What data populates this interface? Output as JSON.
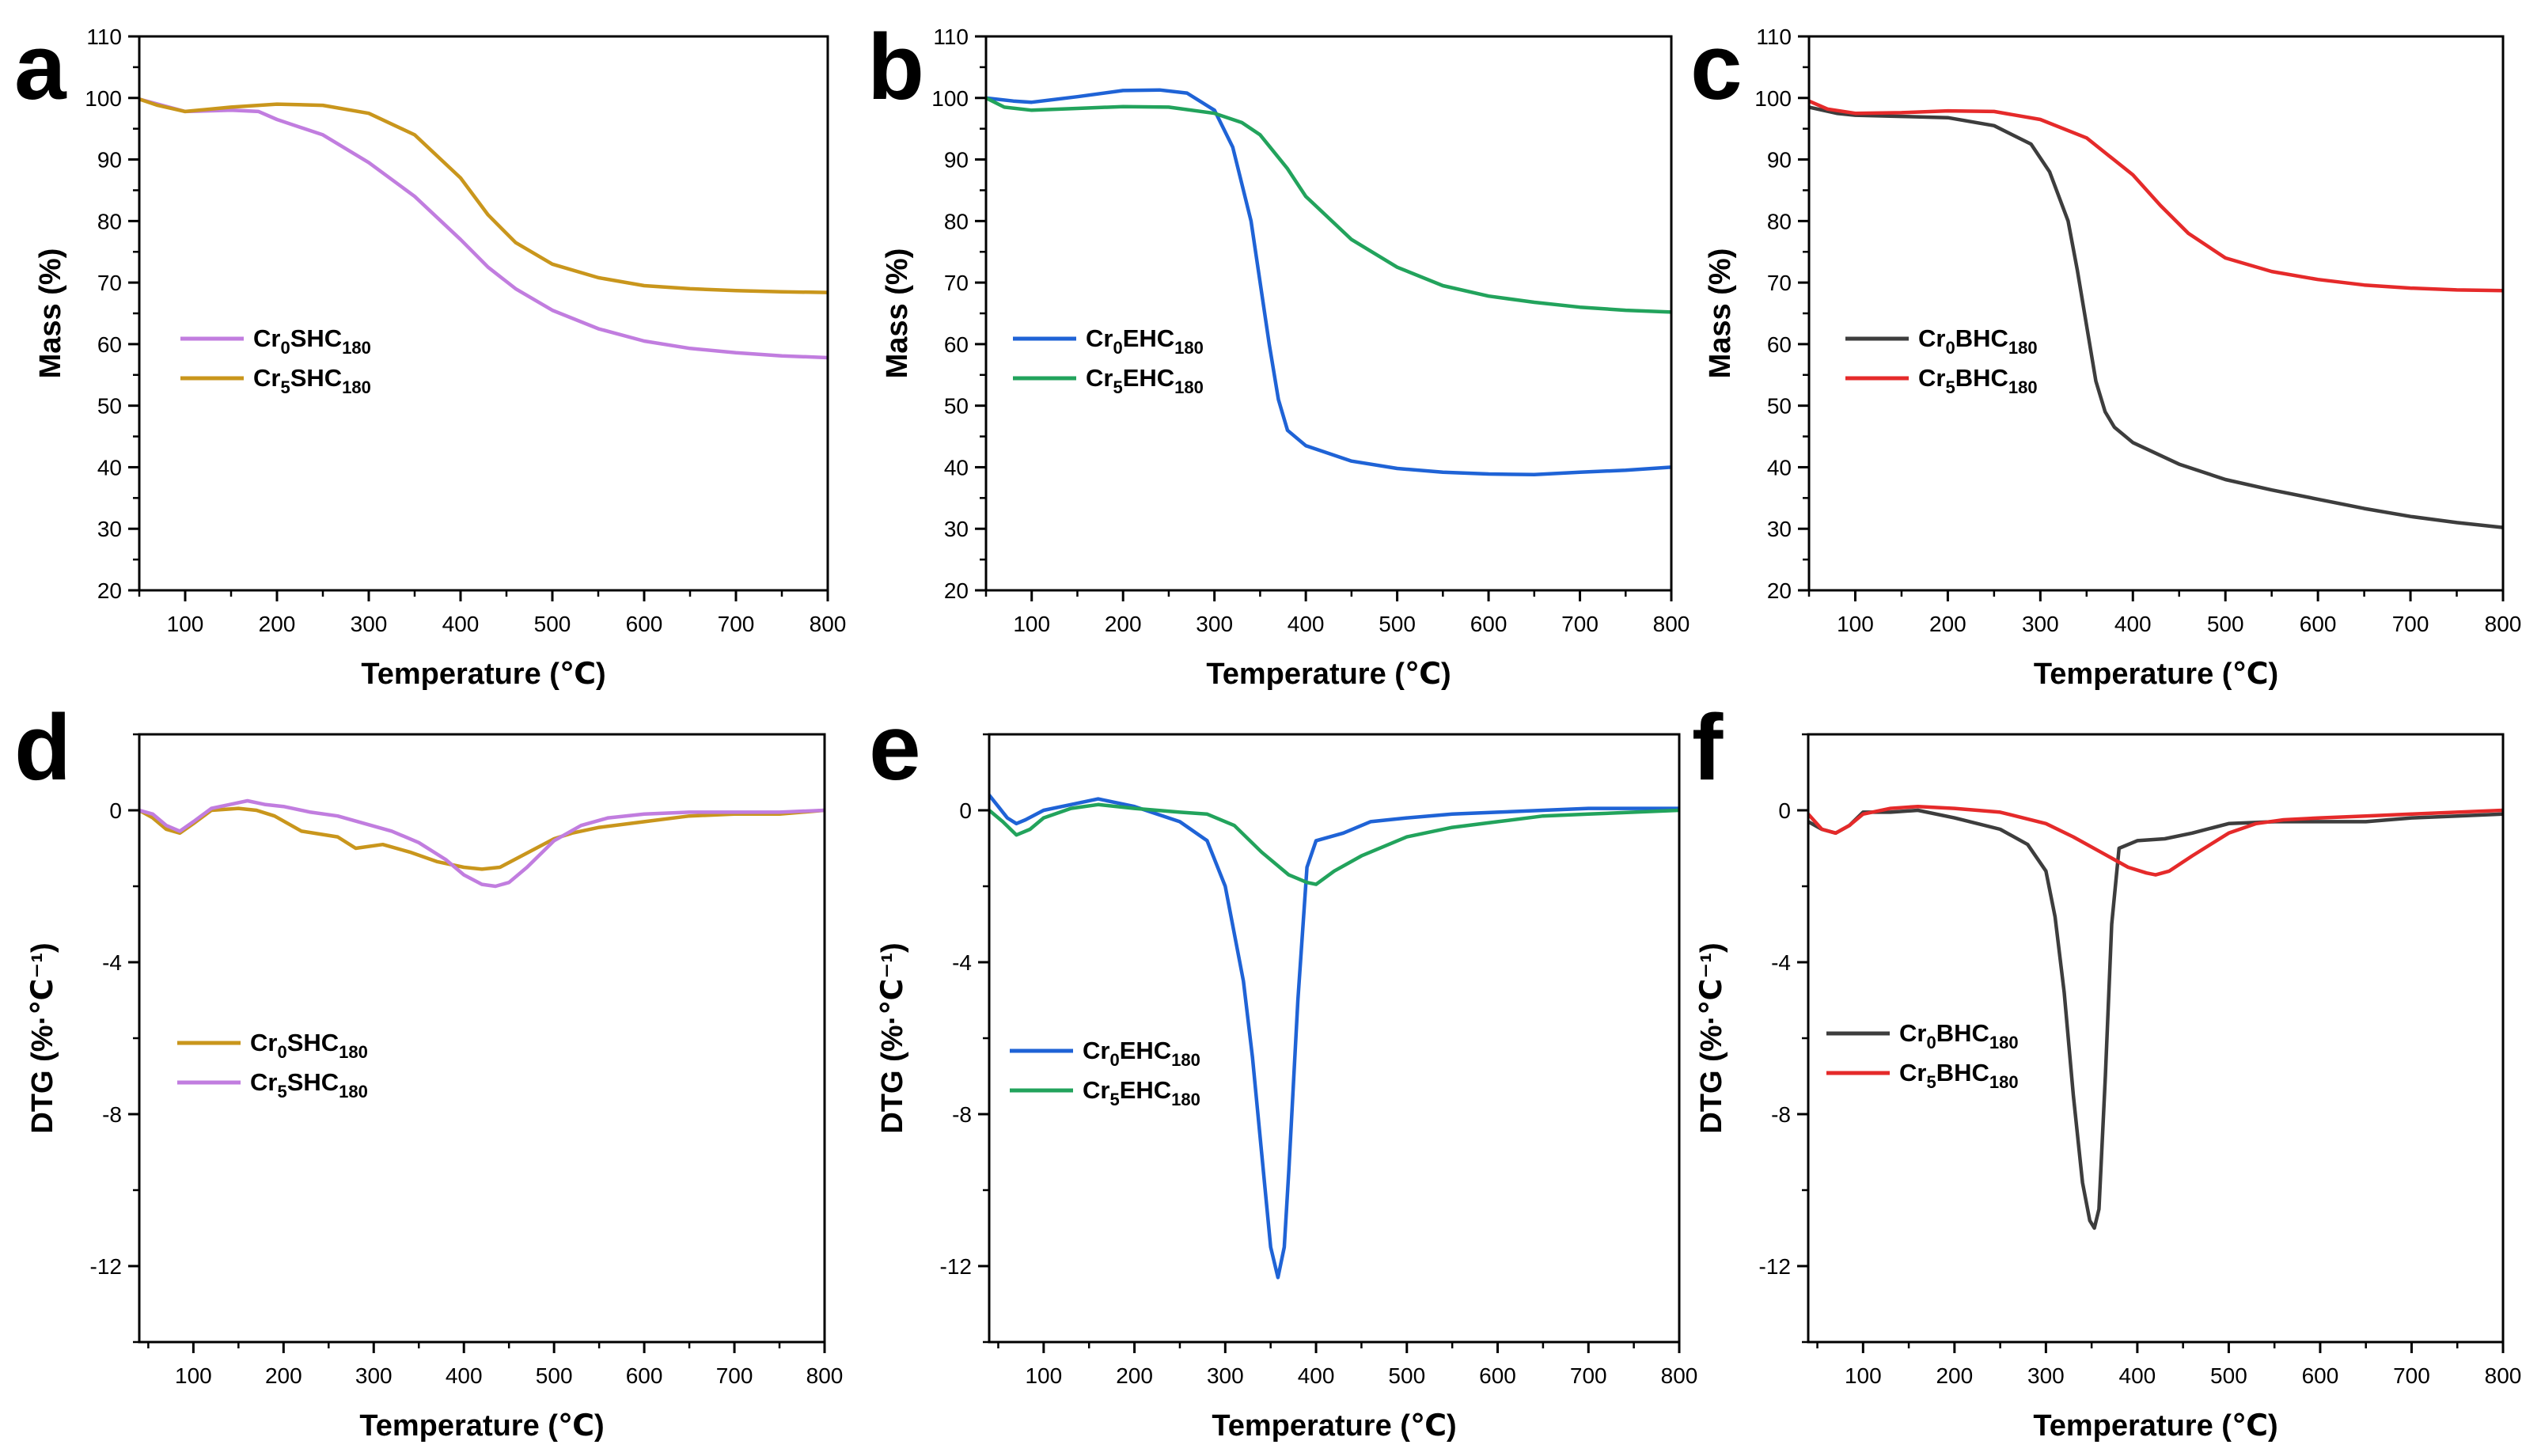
{
  "figure": {
    "description_free": true,
    "panel_letters": [
      "a",
      "b",
      "c",
      "d",
      "e",
      "f"
    ]
  },
  "chart_data": [
    {
      "type": "line",
      "panel": "a",
      "title": "",
      "xlabel": "Temperature (℃)",
      "ylabel": "Mass (%)",
      "xlim": [
        50,
        800
      ],
      "ylim": [
        20,
        110
      ],
      "xticks": [
        100,
        200,
        300,
        400,
        500,
        600,
        700,
        800
      ],
      "yticks": [
        20,
        30,
        40,
        50,
        60,
        70,
        80,
        90,
        100,
        110
      ],
      "legend": "center-left",
      "series": [
        {
          "name": "Cr0SHC180",
          "label_main": "Cr",
          "label_sub1": "0",
          "label_mid": "SHC",
          "label_sub2": "180",
          "color": "#c17ddf",
          "x": [
            50,
            70,
            100,
            150,
            180,
            200,
            250,
            300,
            350,
            400,
            430,
            460,
            500,
            550,
            600,
            650,
            700,
            750,
            800
          ],
          "y": [
            99.8,
            99,
            97.8,
            98,
            97.8,
            96.5,
            94,
            89.5,
            84,
            77,
            72.5,
            69,
            65.5,
            62.5,
            60.5,
            59.3,
            58.6,
            58.1,
            57.8
          ]
        },
        {
          "name": "Cr5SHC180",
          "label_main": "Cr",
          "label_sub1": "5",
          "label_mid": "SHC",
          "label_sub2": "180",
          "color": "#c9961c",
          "x": [
            50,
            70,
            100,
            150,
            200,
            250,
            300,
            350,
            400,
            430,
            460,
            500,
            550,
            600,
            650,
            700,
            750,
            800
          ],
          "y": [
            99.8,
            98.8,
            97.8,
            98.5,
            99,
            98.8,
            97.5,
            94,
            87,
            81,
            76.5,
            73,
            70.8,
            69.5,
            69,
            68.7,
            68.5,
            68.4
          ]
        }
      ]
    },
    {
      "type": "line",
      "panel": "b",
      "title": "",
      "xlabel": "Temperature (℃)",
      "ylabel": "Mass (%)",
      "xlim": [
        50,
        800
      ],
      "ylim": [
        20,
        110
      ],
      "xticks": [
        100,
        200,
        300,
        400,
        500,
        600,
        700,
        800
      ],
      "yticks": [
        20,
        30,
        40,
        50,
        60,
        70,
        80,
        90,
        100,
        110
      ],
      "legend": "center-left",
      "series": [
        {
          "name": "Cr0EHC180",
          "label_main": "Cr",
          "label_sub1": "0",
          "label_mid": "EHC",
          "label_sub2": "180",
          "color": "#1f63d6",
          "x": [
            50,
            80,
            100,
            150,
            200,
            240,
            270,
            300,
            320,
            340,
            350,
            360,
            370,
            380,
            400,
            450,
            500,
            550,
            600,
            650,
            700,
            750,
            800
          ],
          "y": [
            100,
            99.5,
            99.3,
            100.2,
            101.2,
            101.3,
            100.8,
            98,
            92,
            80,
            70,
            60,
            51,
            46,
            43.5,
            41,
            39.8,
            39.2,
            38.9,
            38.8,
            39.2,
            39.5,
            40
          ]
        },
        {
          "name": "Cr5EHC180",
          "label_main": "Cr",
          "label_sub1": "5",
          "label_mid": "EHC",
          "label_sub2": "180",
          "color": "#22a35c",
          "x": [
            50,
            70,
            100,
            150,
            200,
            250,
            300,
            330,
            350,
            380,
            400,
            450,
            500,
            550,
            600,
            650,
            700,
            750,
            800
          ],
          "y": [
            100,
            98.5,
            98,
            98.3,
            98.6,
            98.5,
            97.5,
            96,
            94,
            88.5,
            84,
            77,
            72.5,
            69.5,
            67.8,
            66.8,
            66,
            65.5,
            65.2
          ]
        }
      ]
    },
    {
      "type": "line",
      "panel": "c",
      "title": "",
      "xlabel": "Temperature (℃)",
      "ylabel": "Mass (%)",
      "xlim": [
        50,
        800
      ],
      "ylim": [
        20,
        110
      ],
      "xticks": [
        100,
        200,
        300,
        400,
        500,
        600,
        700,
        800
      ],
      "yticks": [
        20,
        30,
        40,
        50,
        60,
        70,
        80,
        90,
        100,
        110
      ],
      "legend": "center-left",
      "series": [
        {
          "name": "Cr0BHC180",
          "label_main": "Cr",
          "label_sub1": "0",
          "label_mid": "BHC",
          "label_sub2": "180",
          "color": "#3d3d3d",
          "x": [
            50,
            80,
            100,
            150,
            200,
            250,
            290,
            310,
            330,
            340,
            350,
            360,
            370,
            380,
            400,
            450,
            500,
            550,
            600,
            650,
            700,
            750,
            800
          ],
          "y": [
            98.5,
            97.5,
            97.2,
            97,
            96.8,
            95.5,
            92.5,
            88,
            80,
            72,
            63,
            54,
            49,
            46.5,
            44,
            40.5,
            38,
            36.3,
            34.8,
            33.3,
            32,
            31,
            30.2
          ]
        },
        {
          "name": "Cr5BHC180",
          "label_main": "Cr",
          "label_sub1": "5",
          "label_mid": "BHC",
          "label_sub2": "180",
          "color": "#e52a2a",
          "x": [
            50,
            70,
            100,
            150,
            200,
            250,
            300,
            350,
            400,
            430,
            460,
            500,
            550,
            600,
            650,
            700,
            750,
            800
          ],
          "y": [
            99.5,
            98.2,
            97.5,
            97.6,
            97.9,
            97.8,
            96.5,
            93.5,
            87.5,
            82.5,
            78,
            74,
            71.8,
            70.5,
            69.6,
            69.1,
            68.8,
            68.7
          ]
        }
      ]
    },
    {
      "type": "line",
      "panel": "d",
      "title": "",
      "xlabel": "Temperature (℃)",
      "ylabel": "DTG (%·℃⁻¹)",
      "xlim": [
        40,
        800
      ],
      "ylim": [
        -14,
        2
      ],
      "xticks": [
        100,
        200,
        300,
        400,
        500,
        600,
        700,
        800
      ],
      "yticks": [
        0,
        -4,
        -8,
        -12
      ],
      "legend": "center-left",
      "series": [
        {
          "name": "Cr0SHC180",
          "label_main": "Cr",
          "label_sub1": "0",
          "label_mid": "SHC",
          "label_sub2": "180",
          "color": "#c9961c",
          "x": [
            40,
            55,
            70,
            85,
            100,
            120,
            150,
            170,
            190,
            220,
            260,
            280,
            310,
            340,
            370,
            400,
            420,
            440,
            460,
            480,
            500,
            520,
            550,
            600,
            650,
            700,
            750,
            800
          ],
          "y": [
            0,
            -0.2,
            -0.5,
            -0.6,
            -0.35,
            0,
            0.05,
            0,
            -0.15,
            -0.55,
            -0.7,
            -1,
            -0.9,
            -1.1,
            -1.35,
            -1.5,
            -1.55,
            -1.5,
            -1.25,
            -1,
            -0.75,
            -0.6,
            -0.45,
            -0.3,
            -0.15,
            -0.1,
            -0.1,
            0
          ]
        },
        {
          "name": "Cr5SHC180",
          "label_main": "Cr",
          "label_sub1": "5",
          "label_mid": "SHC",
          "label_sub2": "180",
          "color": "#c17ddf",
          "x": [
            40,
            55,
            70,
            85,
            100,
            120,
            140,
            160,
            180,
            200,
            230,
            260,
            290,
            320,
            350,
            380,
            400,
            420,
            435,
            450,
            470,
            500,
            530,
            560,
            600,
            650,
            700,
            750,
            800
          ],
          "y": [
            0,
            -0.1,
            -0.4,
            -0.55,
            -0.3,
            0.05,
            0.15,
            0.25,
            0.15,
            0.1,
            -0.05,
            -0.15,
            -0.35,
            -0.55,
            -0.85,
            -1.3,
            -1.7,
            -1.95,
            -2,
            -1.9,
            -1.5,
            -0.8,
            -0.4,
            -0.2,
            -0.1,
            -0.05,
            -0.05,
            -0.05,
            0
          ]
        }
      ]
    },
    {
      "type": "line",
      "panel": "e",
      "title": "",
      "xlabel": "Temperature (℃)",
      "ylabel": "DTG (%·℃⁻¹)",
      "xlim": [
        40,
        800
      ],
      "ylim": [
        -14,
        2
      ],
      "xticks": [
        100,
        200,
        300,
        400,
        500,
        600,
        700,
        800
      ],
      "yticks": [
        0,
        -4,
        -8,
        -12
      ],
      "legend": "center-left",
      "series": [
        {
          "name": "Cr0EHC180",
          "label_main": "Cr",
          "label_sub1": "0",
          "label_mid": "EHC",
          "label_sub2": "180",
          "color": "#1f63d6",
          "x": [
            40,
            50,
            60,
            70,
            80,
            100,
            130,
            160,
            200,
            250,
            280,
            300,
            320,
            330,
            340,
            350,
            358,
            365,
            370,
            380,
            390,
            400,
            430,
            460,
            500,
            550,
            600,
            650,
            700,
            750,
            800
          ],
          "y": [
            0.4,
            0.1,
            -0.2,
            -0.35,
            -0.25,
            0,
            0.15,
            0.3,
            0.1,
            -0.3,
            -0.8,
            -2,
            -4.5,
            -6.5,
            -9,
            -11.5,
            -12.3,
            -11.5,
            -9.5,
            -5,
            -1.5,
            -0.8,
            -0.6,
            -0.3,
            -0.2,
            -0.1,
            -0.05,
            0,
            0.05,
            0.05,
            0.05
          ]
        },
        {
          "name": "Cr5EHC180",
          "label_main": "Cr",
          "label_sub1": "5",
          "label_mid": "EHC",
          "label_sub2": "180",
          "color": "#22a35c",
          "x": [
            40,
            55,
            70,
            85,
            100,
            130,
            160,
            200,
            250,
            280,
            310,
            340,
            370,
            390,
            400,
            420,
            450,
            500,
            550,
            600,
            650,
            700,
            750,
            800
          ],
          "y": [
            0,
            -0.3,
            -0.65,
            -0.5,
            -0.2,
            0.05,
            0.15,
            0.05,
            -0.05,
            -0.1,
            -0.4,
            -1.1,
            -1.7,
            -1.9,
            -1.95,
            -1.6,
            -1.2,
            -0.7,
            -0.45,
            -0.3,
            -0.15,
            -0.1,
            -0.05,
            0
          ]
        }
      ]
    },
    {
      "type": "line",
      "panel": "f",
      "title": "",
      "xlabel": "Temperature (℃)",
      "ylabel": "DTG (%·℃⁻¹)",
      "xlim": [
        40,
        800
      ],
      "ylim": [
        -14,
        2
      ],
      "xticks": [
        100,
        200,
        300,
        400,
        500,
        600,
        700,
        800
      ],
      "yticks": [
        0,
        -4,
        -8,
        -12
      ],
      "legend": "center-left",
      "series": [
        {
          "name": "Cr0BHC180",
          "label_main": "Cr",
          "label_sub1": "0",
          "label_mid": "BHC",
          "label_sub2": "180",
          "color": "#3d3d3d",
          "x": [
            40,
            55,
            70,
            85,
            100,
            130,
            160,
            200,
            250,
            280,
            300,
            310,
            320,
            330,
            340,
            348,
            353,
            358,
            365,
            372,
            380,
            400,
            430,
            460,
            500,
            550,
            600,
            650,
            700,
            750,
            800
          ],
          "y": [
            -0.3,
            -0.5,
            -0.6,
            -0.4,
            -0.05,
            -0.05,
            0,
            -0.2,
            -0.5,
            -0.9,
            -1.6,
            -2.8,
            -4.8,
            -7.5,
            -9.8,
            -10.8,
            -11,
            -10.5,
            -7,
            -3,
            -1,
            -0.8,
            -0.75,
            -0.6,
            -0.35,
            -0.3,
            -0.3,
            -0.3,
            -0.2,
            -0.15,
            -0.1
          ]
        },
        {
          "name": "Cr5BHC180",
          "label_main": "Cr",
          "label_sub1": "5",
          "label_mid": "BHC",
          "label_sub2": "180",
          "color": "#e52a2a",
          "x": [
            40,
            55,
            70,
            85,
            100,
            130,
            160,
            200,
            250,
            300,
            330,
            360,
            390,
            410,
            420,
            435,
            460,
            500,
            530,
            560,
            600,
            650,
            700,
            750,
            800
          ],
          "y": [
            -0.1,
            -0.5,
            -0.6,
            -0.4,
            -0.1,
            0.05,
            0.1,
            0.05,
            -0.05,
            -0.35,
            -0.7,
            -1.1,
            -1.5,
            -1.65,
            -1.7,
            -1.6,
            -1.2,
            -0.6,
            -0.35,
            -0.25,
            -0.2,
            -0.15,
            -0.1,
            -0.05,
            0
          ]
        }
      ]
    }
  ]
}
